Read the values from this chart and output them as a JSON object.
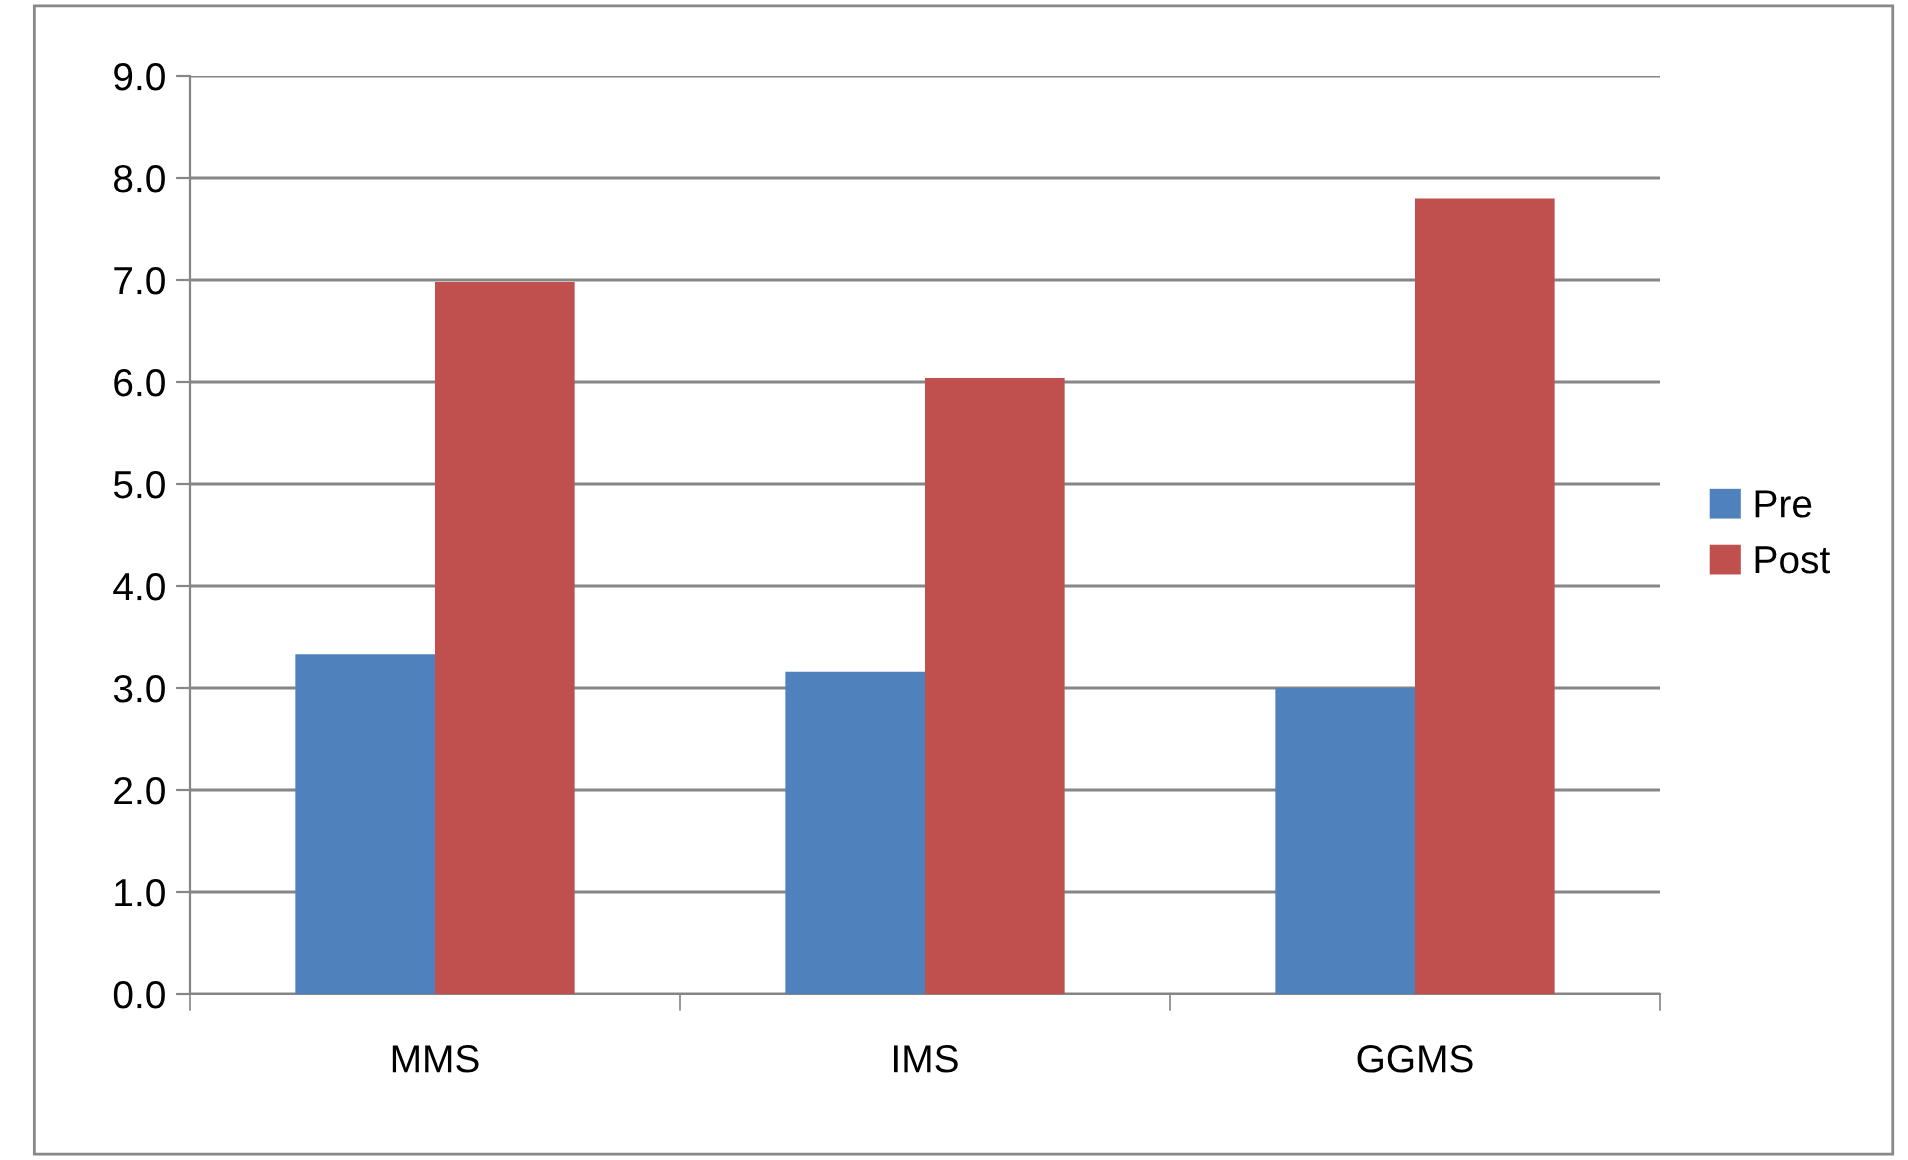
{
  "chart_data": {
    "type": "bar",
    "categories": [
      "MMS",
      "IMS",
      "GGMS"
    ],
    "series": [
      {
        "name": "Pre",
        "color": "#4f81bd",
        "values": [
          3.33,
          3.16,
          3.0
        ]
      },
      {
        "name": "Post",
        "color": "#c0504d",
        "values": [
          6.98,
          6.04,
          7.8
        ]
      }
    ],
    "ylim": [
      0,
      9
    ],
    "yticks": [
      {
        "value": 0,
        "label": "0.0"
      },
      {
        "value": 1,
        "label": "1.0"
      },
      {
        "value": 2,
        "label": "2.0"
      },
      {
        "value": 3,
        "label": "3.0"
      },
      {
        "value": 4,
        "label": "4.0"
      },
      {
        "value": 5,
        "label": "5.0"
      },
      {
        "value": 6,
        "label": "6.0"
      },
      {
        "value": 7,
        "label": "7.0"
      },
      {
        "value": 8,
        "label": "8.0"
      },
      {
        "value": 9,
        "label": "9.0"
      }
    ],
    "grid": "y",
    "legend": "right"
  }
}
